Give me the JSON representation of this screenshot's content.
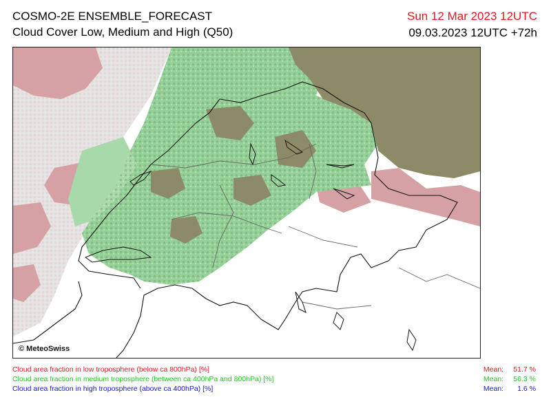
{
  "header": {
    "title": "COSMO-2E ENSEMBLE_FORECAST",
    "subtitle": "Cloud Cover Low, Medium and High (Q50)",
    "valid_time": "Sun 12 Mar 2023 12UTC",
    "run_time": "09.03.2023 12UTC +72h"
  },
  "map": {
    "copyright": "© MeteoSwiss"
  },
  "legend": [
    {
      "label": "Cloud area fraction in low troposphere (below ca 800hPa) [%]",
      "color": "#e8141e",
      "mean_label": "Mean:",
      "mean_value": "51.7 %"
    },
    {
      "label": "Cloud area fraction in medium troposphere (between ca 400hPa and 800hPa) [%]",
      "color": "#1ec81e",
      "mean_label": "Mean:",
      "mean_value": "56.3 %"
    },
    {
      "label": "Cloud area fraction in high troposphere (above ca 400hPa) [%]",
      "color": "#1414e6",
      "mean_label": "Mean:",
      "mean_value": "1.6 %"
    }
  ],
  "colors": {
    "low_cloud": "#d9a3a6",
    "medium_cloud": "#8fcf92",
    "low_and_medium": "#8c8a64",
    "light_gray": "#dedede"
  }
}
